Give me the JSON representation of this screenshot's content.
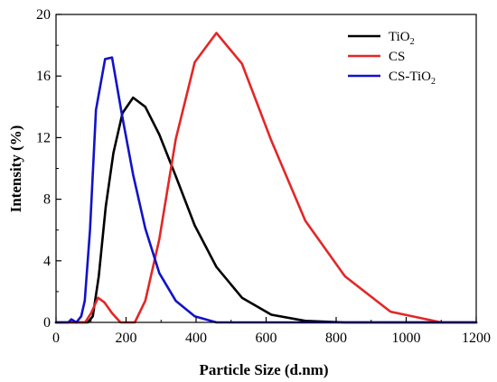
{
  "chart_data": {
    "type": "line",
    "title": "",
    "xlabel": "Particle Size (d.nm)",
    "ylabel": "Intensity (%)",
    "xlim": [
      0,
      1200
    ],
    "ylim": [
      0,
      20
    ],
    "x_ticks": [
      0,
      200,
      400,
      600,
      800,
      1000,
      1200
    ],
    "y_ticks": [
      0,
      4,
      8,
      12,
      16,
      20
    ],
    "grid": false,
    "legend_position": "top-right",
    "series": [
      {
        "name": "TiO",
        "name_subscript": "2",
        "color": "#000000",
        "points": [
          [
            0,
            0
          ],
          [
            91,
            0
          ],
          [
            105,
            0.4
          ],
          [
            122,
            3
          ],
          [
            142,
            7.5
          ],
          [
            164,
            11
          ],
          [
            190,
            13.6
          ],
          [
            220,
            14.6
          ],
          [
            255,
            14
          ],
          [
            295,
            12.2
          ],
          [
            342,
            9.5
          ],
          [
            396,
            6.3
          ],
          [
            458,
            3.6
          ],
          [
            531,
            1.6
          ],
          [
            615,
            0.5
          ],
          [
            712,
            0.1
          ],
          [
            825,
            0
          ],
          [
            1200,
            0
          ]
        ]
      },
      {
        "name": "CS",
        "name_subscript": "",
        "color": "#e32626",
        "points": [
          [
            0,
            0
          ],
          [
            68,
            0
          ],
          [
            83,
            0
          ],
          [
            100,
            0.6
          ],
          [
            120,
            1.6
          ],
          [
            138,
            1.3
          ],
          [
            160,
            0.6
          ],
          [
            184,
            0
          ],
          [
            205,
            0
          ],
          [
            225,
            0
          ],
          [
            255,
            1.4
          ],
          [
            295,
            5.4
          ],
          [
            342,
            11.9
          ],
          [
            396,
            16.9
          ],
          [
            458,
            18.8
          ],
          [
            531,
            16.8
          ],
          [
            615,
            11.8
          ],
          [
            712,
            6.6
          ],
          [
            825,
            3
          ],
          [
            955,
            0.7
          ],
          [
            1100,
            0
          ],
          [
            1200,
            0
          ]
        ]
      },
      {
        "name": "CS-TiO",
        "name_subscript": "2",
        "color": "#1212c8",
        "points": [
          [
            0,
            0
          ],
          [
            35,
            0
          ],
          [
            44,
            0.2
          ],
          [
            58,
            0
          ],
          [
            72,
            0.4
          ],
          [
            82,
            1.4
          ],
          [
            97,
            6
          ],
          [
            114,
            13.8
          ],
          [
            140,
            17.1
          ],
          [
            160,
            17.2
          ],
          [
            188,
            13.5
          ],
          [
            220,
            9.6
          ],
          [
            255,
            6.1
          ],
          [
            295,
            3.2
          ],
          [
            342,
            1.4
          ],
          [
            396,
            0.4
          ],
          [
            458,
            0
          ],
          [
            1200,
            0
          ]
        ]
      }
    ]
  }
}
